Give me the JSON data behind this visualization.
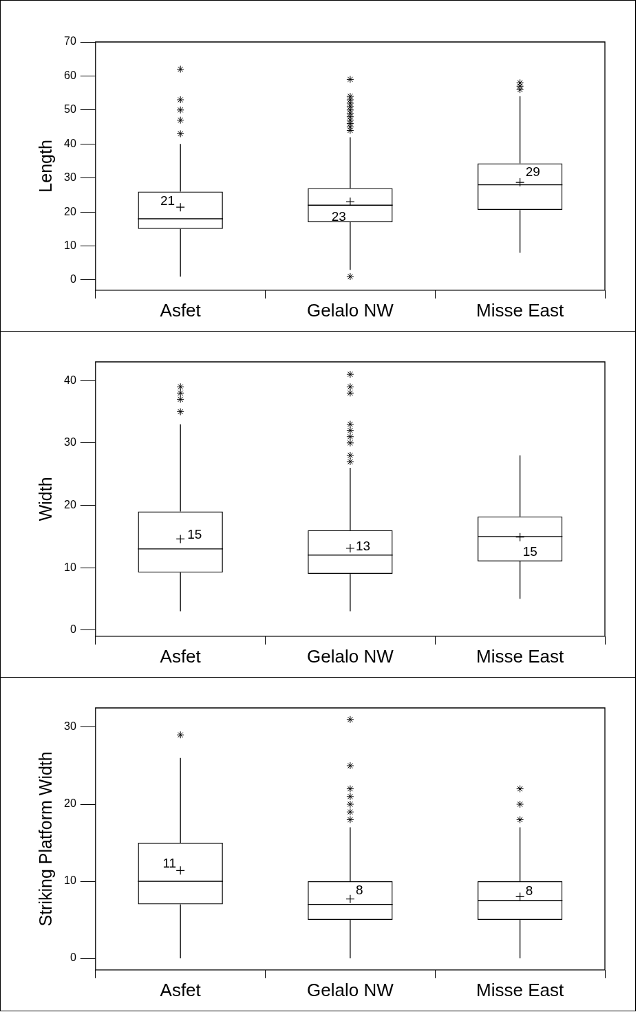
{
  "chart_data": [
    {
      "type": "box",
      "ylabel": "Length",
      "categories": [
        "Asfet",
        "Gelalo NW",
        "Misse East"
      ],
      "ylim": [
        -3,
        70
      ],
      "yticks": [
        0,
        10,
        20,
        30,
        40,
        50,
        60,
        70
      ],
      "grid": false,
      "boxes": [
        {
          "low": 1,
          "q1": 15,
          "median": 18,
          "q3": 26,
          "high": 40,
          "mean": 21.4,
          "outliers": [
            43,
            47,
            50,
            53,
            62
          ]
        },
        {
          "low": 3,
          "q1": 17,
          "median": 22,
          "q3": 27,
          "high": 42,
          "mean": 23,
          "outliers": [
            1,
            44,
            45,
            46,
            47,
            48,
            49,
            50,
            51,
            52,
            53,
            54,
            59
          ]
        },
        {
          "low": 8,
          "q1": 20.6,
          "median": 28,
          "q3": 34.3,
          "high": 54,
          "mean": 28.7,
          "outliers": [
            56,
            57,
            58
          ]
        }
      ],
      "annotations": [
        "21",
        "23",
        "29"
      ]
    },
    {
      "type": "box",
      "ylabel": "Width",
      "categories": [
        "Asfet",
        "Gelalo NW",
        "Misse East"
      ],
      "ylim": [
        -1,
        43
      ],
      "yticks": [
        0,
        10,
        20,
        30,
        40
      ],
      "grid": false,
      "boxes": [
        {
          "low": 3,
          "q1": 9.2,
          "median": 13,
          "q3": 19,
          "high": 33,
          "mean": 14.6,
          "outliers": [
            35,
            37,
            38,
            39
          ]
        },
        {
          "low": 3,
          "q1": 9,
          "median": 12,
          "q3": 16,
          "high": 26,
          "mean": 13.1,
          "outliers": [
            27,
            28,
            30,
            31,
            32,
            33,
            38,
            39,
            41
          ]
        },
        {
          "low": 5,
          "q1": 11,
          "median": 15,
          "q3": 18.2,
          "high": 28,
          "mean": 14.9
        }
      ],
      "annotations": [
        "15",
        "13",
        "15"
      ]
    },
    {
      "type": "box",
      "ylabel": "Striking Platform Width",
      "categories": [
        "Asfet",
        "Gelalo NW",
        "Misse East"
      ],
      "ylim": [
        -1.5,
        32.5
      ],
      "yticks": [
        0,
        10,
        20,
        30
      ],
      "grid": false,
      "boxes": [
        {
          "low": 0,
          "q1": 7,
          "median": 10,
          "q3": 15,
          "high": 26,
          "mean": 11.4,
          "outliers": [
            29
          ]
        },
        {
          "low": 0,
          "q1": 5,
          "median": 7,
          "q3": 10,
          "high": 17,
          "mean": 7.7,
          "outliers": [
            18,
            19,
            20,
            21,
            22,
            25,
            31
          ]
        },
        {
          "low": 0,
          "q1": 5,
          "median": 7.5,
          "q3": 10,
          "high": 17,
          "mean": 8,
          "outliers": [
            18,
            20,
            22
          ]
        }
      ],
      "annotations": [
        "11",
        "8",
        "8"
      ]
    }
  ]
}
